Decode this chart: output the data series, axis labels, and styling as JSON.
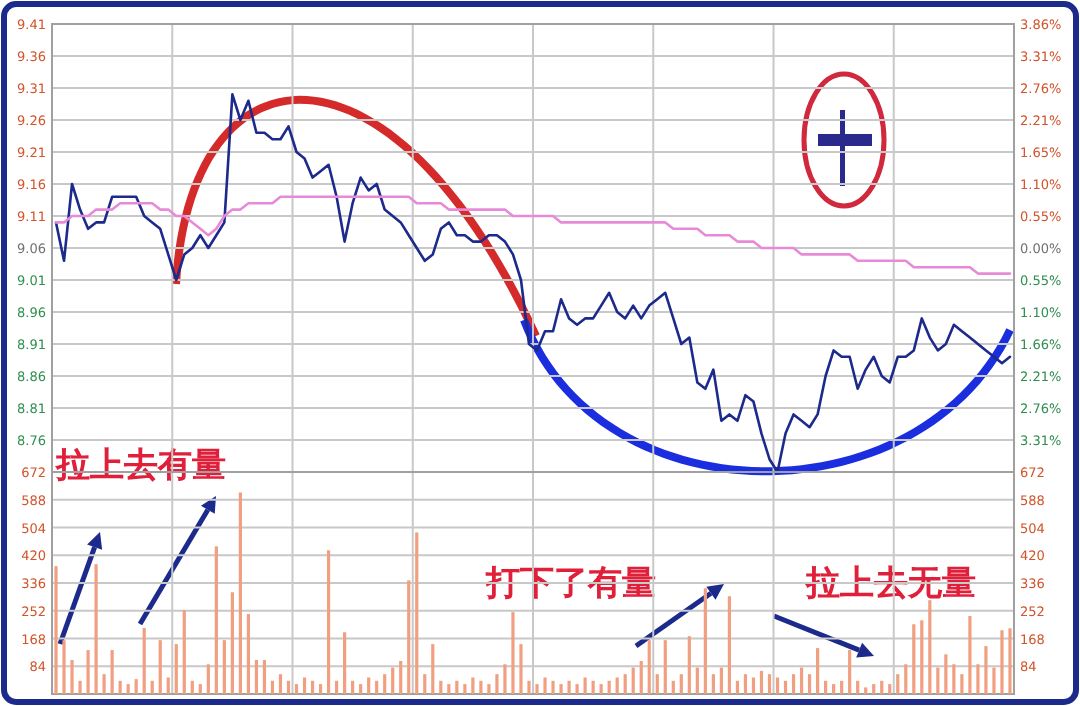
{
  "chart_data": [
    {
      "type": "line",
      "categories": [
        null,
        null,
        null,
        null,
        null,
        null,
        null,
        null,
        null,
        null,
        null,
        null,
        null,
        null,
        null,
        null,
        null,
        null,
        null,
        null,
        null,
        null,
        null,
        null,
        null,
        null,
        null,
        null,
        null,
        null,
        null,
        null,
        null,
        null,
        null,
        null,
        null,
        null,
        null,
        null,
        null,
        null,
        null,
        null,
        null,
        null,
        null,
        null,
        null,
        null,
        null,
        null,
        null,
        null,
        null,
        null,
        null,
        null,
        null,
        null,
        null,
        null,
        null,
        null,
        null,
        null,
        null,
        null,
        null,
        null,
        null,
        null,
        null,
        null,
        null,
        null,
        null,
        null,
        null,
        null,
        null,
        null,
        null,
        null,
        null,
        null,
        null,
        null,
        null,
        null,
        null,
        null,
        null,
        null,
        null,
        null,
        null,
        null,
        null,
        null,
        null,
        null,
        null,
        null,
        null,
        null,
        null,
        null,
        null,
        null,
        null,
        null,
        null,
        null,
        null,
        null,
        null,
        null,
        null,
        null
      ],
      "ylim": [
        8.71,
        9.41
      ],
      "yticks": [
        9.41,
        9.36,
        9.31,
        9.26,
        9.21,
        9.16,
        9.11,
        9.06,
        9.01,
        8.96,
        8.91,
        8.86,
        8.81,
        8.76
      ],
      "y2lim": [
        -3.86,
        3.86
      ],
      "y2ticks": [
        {
          "value": 3.86,
          "label": "3.86%"
        },
        {
          "value": 3.31,
          "label": "3.31%"
        },
        {
          "value": 2.76,
          "label": "2.76%"
        },
        {
          "value": 2.21,
          "label": "2.21%"
        },
        {
          "value": 1.65,
          "label": "1.65%"
        },
        {
          "value": 1.1,
          "label": "1.10%"
        },
        {
          "value": 0.55,
          "label": "0.55%"
        },
        {
          "value": 0,
          "label": "0.00%"
        },
        {
          "value": -0.55,
          "label": "0.55%"
        },
        {
          "value": -1.1,
          "label": "1.10%"
        },
        {
          "value": -1.66,
          "label": "1.66%"
        },
        {
          "value": -2.21,
          "label": "2.21%"
        },
        {
          "value": -2.76,
          "label": "2.76%"
        },
        {
          "value": -3.31,
          "label": "3.31%"
        }
      ],
      "grid": true,
      "tick_labels": "y",
      "series": [
        {
          "color": "#1c2a8c",
          "values": [
            9.1,
            9.04,
            9.16,
            9.12,
            9.09,
            9.1,
            9.1,
            9.14,
            9.14,
            9.14,
            9.14,
            9.11,
            9.1,
            9.09,
            9.05,
            9.01,
            9.05,
            9.06,
            9.08,
            9.06,
            9.08,
            9.1,
            9.3,
            9.26,
            9.29,
            9.24,
            9.24,
            9.23,
            9.23,
            9.25,
            9.21,
            9.2,
            9.17,
            9.18,
            9.19,
            9.14,
            9.07,
            9.13,
            9.17,
            9.15,
            9.16,
            9.12,
            9.11,
            9.1,
            9.08,
            9.06,
            9.04,
            9.05,
            9.09,
            9.1,
            9.08,
            9.08,
            9.07,
            9.07,
            9.08,
            9.08,
            9.07,
            9.05,
            9.01,
            8.91,
            8.9,
            8.93,
            8.93,
            8.98,
            8.95,
            8.94,
            8.95,
            8.95,
            8.97,
            8.99,
            8.96,
            8.95,
            8.97,
            8.95,
            8.97,
            8.98,
            8.99,
            8.95,
            8.91,
            8.92,
            8.85,
            8.84,
            8.87,
            8.79,
            8.8,
            8.79,
            8.83,
            8.82,
            8.77,
            8.73,
            8.71,
            8.77,
            8.8,
            8.79,
            8.78,
            8.8,
            8.86,
            8.9,
            8.89,
            8.89,
            8.84,
            8.87,
            8.89,
            8.86,
            8.85,
            8.89,
            8.89,
            8.9,
            8.95,
            8.92,
            8.9,
            8.91,
            8.94,
            8.93,
            8.92,
            8.91,
            8.9,
            8.89,
            8.88,
            8.89
          ]
        },
        {
          "color": "#e88ad8",
          "values": [
            9.1,
            9.1,
            9.11,
            9.11,
            9.11,
            9.12,
            9.12,
            9.12,
            9.13,
            9.13,
            9.13,
            9.13,
            9.13,
            9.12,
            9.12,
            9.11,
            9.11,
            9.1,
            9.09,
            9.08,
            9.09,
            9.11,
            9.12,
            9.12,
            9.13,
            9.13,
            9.13,
            9.13,
            9.14,
            9.14,
            9.14,
            9.14,
            9.14,
            9.14,
            9.14,
            9.14,
            9.14,
            9.14,
            9.14,
            9.14,
            9.14,
            9.14,
            9.14,
            9.14,
            9.14,
            9.13,
            9.13,
            9.13,
            9.13,
            9.12,
            9.12,
            9.12,
            9.12,
            9.12,
            9.12,
            9.12,
            9.12,
            9.11,
            9.11,
            9.11,
            9.11,
            9.11,
            9.11,
            9.1,
            9.1,
            9.1,
            9.1,
            9.1,
            9.1,
            9.1,
            9.1,
            9.1,
            9.1,
            9.1,
            9.1,
            9.1,
            9.1,
            9.09,
            9.09,
            9.09,
            9.09,
            9.08,
            9.08,
            9.08,
            9.08,
            9.07,
            9.07,
            9.07,
            9.06,
            9.06,
            9.06,
            9.06,
            9.06,
            9.05,
            9.05,
            9.05,
            9.05,
            9.05,
            9.05,
            9.05,
            9.04,
            9.04,
            9.04,
            9.04,
            9.04,
            9.04,
            9.04,
            9.03,
            9.03,
            9.03,
            9.03,
            9.03,
            9.03,
            9.03,
            9.03,
            9.02,
            9.02,
            9.02,
            9.02,
            9.02
          ]
        }
      ]
    },
    {
      "type": "bar",
      "color": "#f0a080",
      "categories": [
        null,
        null,
        null,
        null,
        null,
        null,
        null,
        null,
        null,
        null,
        null,
        null,
        null,
        null,
        null,
        null,
        null,
        null,
        null,
        null,
        null,
        null,
        null,
        null,
        null,
        null,
        null,
        null,
        null,
        null,
        null,
        null,
        null,
        null,
        null,
        null,
        null,
        null,
        null,
        null,
        null,
        null,
        null,
        null,
        null,
        null,
        null,
        null,
        null,
        null,
        null,
        null,
        null,
        null,
        null,
        null,
        null,
        null,
        null,
        null,
        null,
        null,
        null,
        null,
        null,
        null,
        null,
        null,
        null,
        null,
        null,
        null,
        null,
        null,
        null,
        null,
        null,
        null,
        null,
        null,
        null,
        null,
        null,
        null,
        null,
        null,
        null,
        null,
        null,
        null,
        null,
        null,
        null,
        null,
        null,
        null,
        null,
        null,
        null,
        null,
        null,
        null,
        null,
        null,
        null,
        null,
        null,
        null,
        null,
        null,
        null,
        null,
        null,
        null,
        null,
        null,
        null,
        null,
        null,
        null
      ],
      "ylim": [
        0,
        672
      ],
      "yticks": [
        84,
        168,
        252,
        336,
        420,
        504,
        588,
        672
      ],
      "y2lim": [
        0,
        672
      ],
      "y2ticks": [
        84,
        168,
        252,
        336,
        420,
        504,
        588,
        672
      ],
      "grid": true,
      "tick_labels": "y",
      "values": [
        387,
        163,
        103,
        40,
        133,
        393,
        60,
        133,
        40,
        30,
        45,
        200,
        40,
        163,
        50,
        151,
        254,
        40,
        30,
        90,
        447,
        163,
        308,
        610,
        242,
        103,
        103,
        40,
        60,
        40,
        30,
        50,
        40,
        30,
        435,
        40,
        187,
        40,
        30,
        50,
        40,
        60,
        80,
        100,
        344,
        489,
        60,
        151,
        40,
        30,
        40,
        30,
        50,
        40,
        30,
        60,
        90,
        248,
        151,
        40,
        30,
        50,
        40,
        30,
        40,
        30,
        50,
        40,
        30,
        40,
        50,
        60,
        80,
        100,
        163,
        60,
        163,
        40,
        60,
        175,
        80,
        320,
        60,
        80,
        296,
        40,
        60,
        50,
        70,
        60,
        50,
        40,
        60,
        80,
        60,
        139,
        40,
        30,
        40,
        133,
        40,
        20,
        30,
        40,
        30,
        60,
        90,
        211,
        223,
        284,
        80,
        120,
        90,
        60,
        236,
        90,
        145,
        80,
        193,
        199
      ],
      "annotations": [
        "拉上去有量",
        "打下了有量",
        "拉上去无量"
      ]
    }
  ]
}
